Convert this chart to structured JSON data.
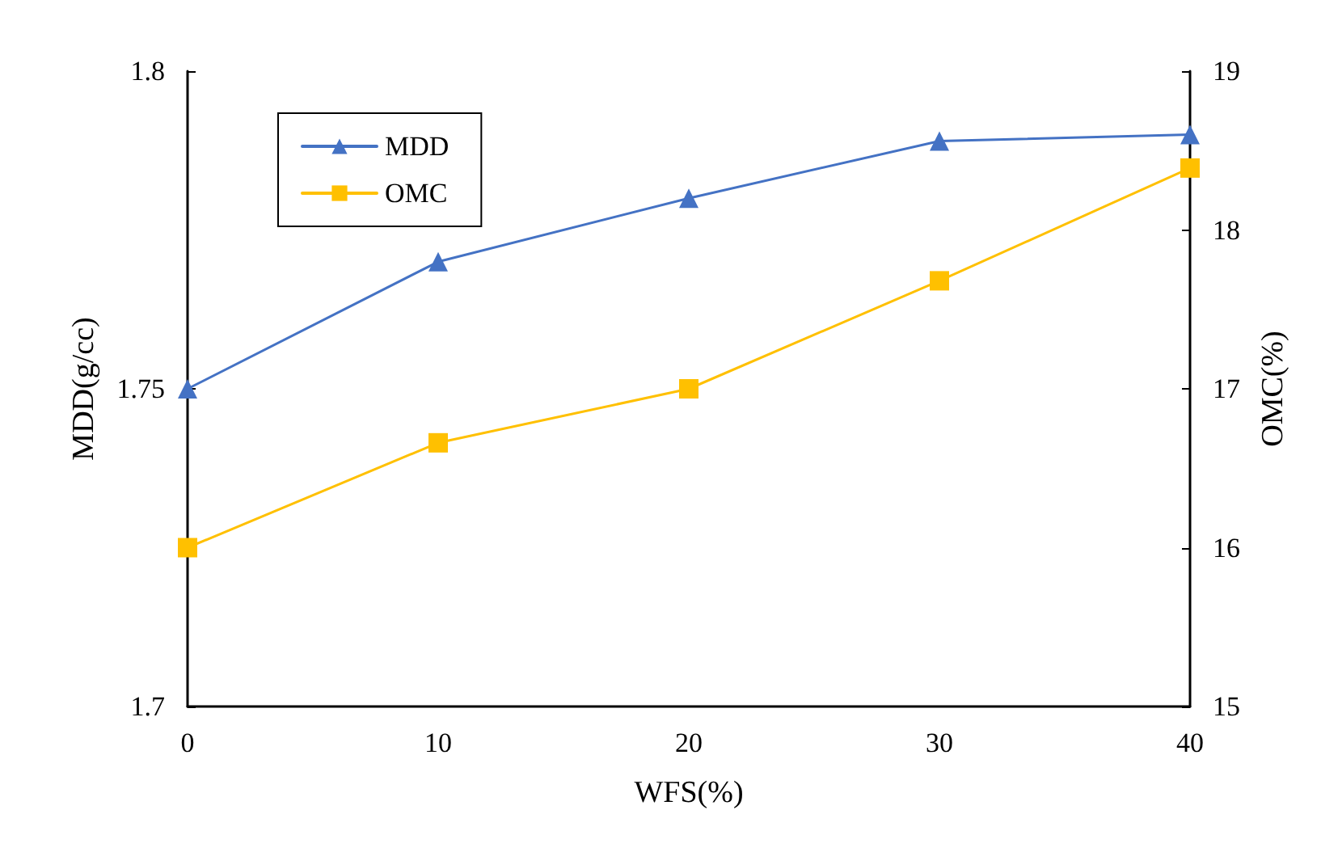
{
  "chart_data": {
    "type": "line",
    "xlabel": "WFS(%)",
    "ylabel": "MDD(g/cc)",
    "y2label": "OMC(%)",
    "x": [
      0,
      10,
      20,
      30,
      40
    ],
    "series": [
      {
        "name": "MDD",
        "color": "#4472c4",
        "marker": "triangle",
        "values": [
          1.75,
          1.77,
          1.78,
          1.789,
          1.79
        ]
      },
      {
        "name": "OMC",
        "color": "#ffc000",
        "marker": "square",
        "axis": "y2",
        "values": [
          16.0,
          16.66,
          17.0,
          17.68,
          18.39
        ]
      }
    ],
    "xlim": [
      0,
      40
    ],
    "xticks": [
      0,
      10,
      20,
      30,
      40
    ],
    "ylim": [
      1.7,
      1.8
    ],
    "yticks": [
      1.7,
      1.75,
      1.8
    ],
    "y2lim": [
      15,
      19
    ],
    "y2ticks": [
      15,
      16,
      17,
      18,
      19
    ],
    "grid": false,
    "legend": "top left",
    "line_style": "solid"
  }
}
